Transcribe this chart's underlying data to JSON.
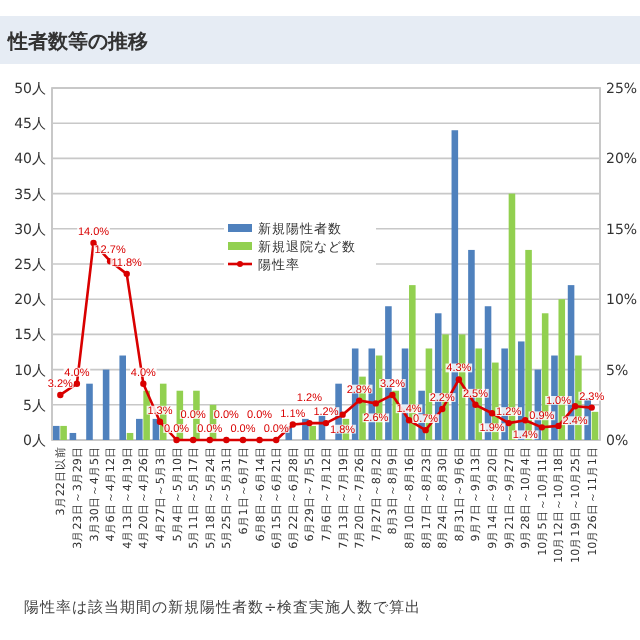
{
  "chart_data": {
    "type": "bar",
    "title": "性者数等の推移",
    "categories": [
      "3月22日以前",
      "3月23日～3月29日",
      "3月30日～4月5日",
      "4月6日～4月12日",
      "4月13日～4月19日",
      "4月20日～4月26日",
      "4月27日～5月3日",
      "5月4日～5月10日",
      "5月11日～5月17日",
      "5月18日～5月24日",
      "5月25日～5月31日",
      "6月1日～6月7日",
      "6月8日～6月14日",
      "6月15日～6月21日",
      "6月22日～6月28日",
      "6月29日～7月5日",
      "7月6日～7月12日",
      "7月13日～7月19日",
      "7月20日～7月26日",
      "7月27日～8月2日",
      "8月3日～8月9日",
      "8月10日～8月16日",
      "8月17日～8月23日",
      "8月24日～8月30日",
      "8月31日～9月6日",
      "9月7日～9月13日",
      "9月14日～9月20日",
      "9月21日～9月27日",
      "9月28日～10月4日",
      "10月5日～10月11日",
      "10月12日～10月18日",
      "10月19日～10月25日",
      "10月26日～11月1日"
    ],
    "series": [
      {
        "name": "新規陽性者数",
        "color": "#4f81bd",
        "values": [
          2,
          1,
          8,
          10,
          12,
          3,
          3,
          0,
          0,
          0,
          0,
          0,
          0,
          0,
          2,
          3,
          3.5,
          8,
          13,
          13,
          19,
          13,
          7,
          18,
          44,
          27,
          19,
          13,
          14,
          10,
          12,
          22,
          6
        ]
      },
      {
        "name": "新規退院など数",
        "color": "#92d050",
        "values": [
          2,
          0,
          0,
          0,
          1,
          7,
          8,
          7,
          7,
          5,
          0,
          0,
          0,
          0,
          0,
          2,
          0,
          3,
          9,
          12,
          7,
          22,
          13,
          15,
          15,
          13,
          11,
          35,
          27,
          18,
          20,
          12,
          4
        ]
      },
      {
        "name": "陽性率",
        "type": "line",
        "axis": "y2",
        "color": "#d90000",
        "marker": "circle",
        "values": [
          3.2,
          4.0,
          14.0,
          12.7,
          11.8,
          4.0,
          1.3,
          0,
          0,
          0,
          0,
          0,
          0,
          0,
          1.1,
          1.2,
          1.2,
          1.8,
          2.8,
          2.6,
          3.2,
          1.4,
          0.7,
          2.2,
          4.3,
          2.5,
          1.9,
          1.2,
          1.4,
          0.9,
          1.0,
          2.4,
          2.3
        ],
        "value_labels": [
          "3.2%",
          "4.0%",
          "14.0%",
          "12.7%",
          "11.8%",
          "4.0%",
          "1.3%",
          "0.0%",
          "0.0%",
          "0.0%",
          "0.0%",
          "0.0%",
          "0.0%",
          "0.0%",
          "1.1%",
          "1.2%",
          "1.2%",
          "1.8%",
          "2.8%",
          "2.6%",
          "3.2%",
          "1.4%",
          "0.7%",
          "2.2%",
          "4.3%",
          "2.5%",
          "1.9%",
          "1.2%",
          "1.4%",
          "0.9%",
          "1.0%",
          "2.4%",
          "2.3%"
        ]
      }
    ],
    "ylim": [
      0,
      50
    ],
    "yticks": [
      {
        "value": 0,
        "label": "0人"
      },
      {
        "value": 5,
        "label": "5人"
      },
      {
        "value": 10,
        "label": "10人"
      },
      {
        "value": 15,
        "label": "15人"
      },
      {
        "value": 20,
        "label": "20人"
      },
      {
        "value": 25,
        "label": "25人"
      },
      {
        "value": 30,
        "label": "30人"
      },
      {
        "value": 35,
        "label": "35人"
      },
      {
        "value": 40,
        "label": "40人"
      },
      {
        "value": 45,
        "label": "45人"
      },
      {
        "value": 50,
        "label": "50人"
      }
    ],
    "y2lim": [
      0,
      25
    ],
    "y2ticks": [
      {
        "value": 0,
        "label": "0%"
      },
      {
        "value": 5,
        "label": "5%"
      },
      {
        "value": 10,
        "label": "10%"
      },
      {
        "value": 15,
        "label": "15%"
      },
      {
        "value": 20,
        "label": "20%"
      },
      {
        "value": 25,
        "label": "25%"
      }
    ],
    "grid": "y",
    "legend": "center",
    "annotations": [
      "陽性率は該当期間の新規陽性者数÷検査実施人数で算出"
    ]
  }
}
